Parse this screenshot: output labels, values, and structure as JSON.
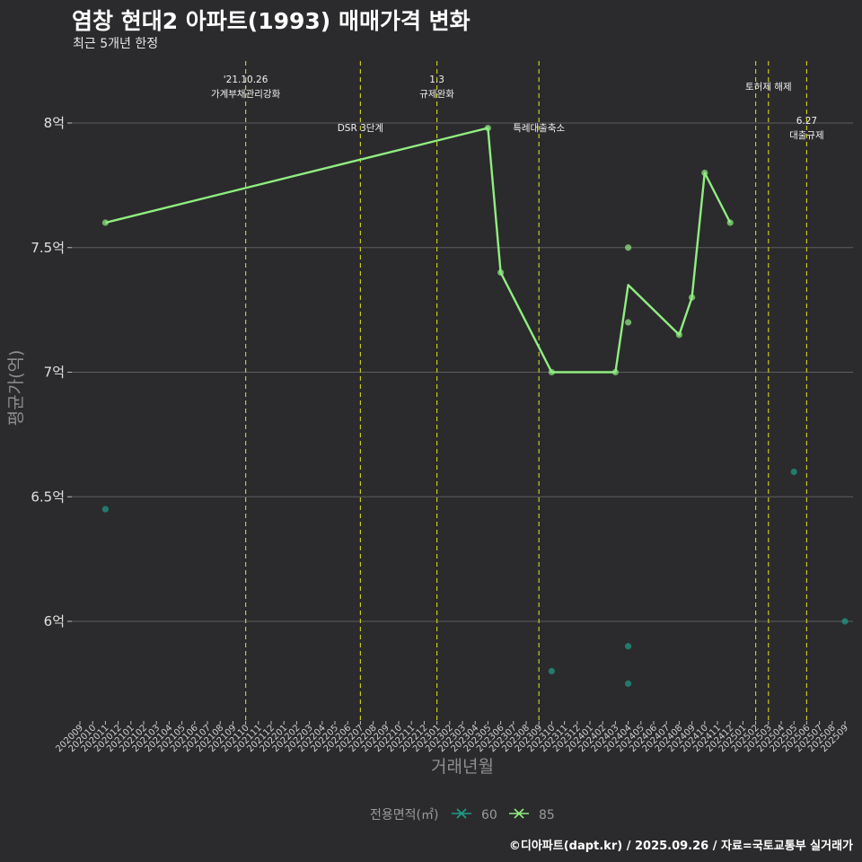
{
  "title": "염창 현대2 아파트(1993) 매매가격 변화",
  "subtitle": "최근 5개년 한정",
  "footer": "©디아파트(dapt.kr) / 2025.09.26 / 자료=국토교통부 실거래가",
  "chart_data": {
    "type": "line",
    "xlabel": "거래년월",
    "ylabel": "평균가(억)",
    "x_categories": [
      "202009",
      "202010",
      "202011",
      "202012",
      "202101",
      "202102",
      "202103",
      "202104",
      "202105",
      "202106",
      "202107",
      "202108",
      "202109",
      "202110",
      "202111",
      "202112",
      "202201",
      "202202",
      "202203",
      "202204",
      "202205",
      "202206",
      "202207",
      "202208",
      "202209",
      "202210",
      "202211",
      "202212",
      "202301",
      "202302",
      "202303",
      "202304",
      "202305",
      "202306",
      "202307",
      "202308",
      "202309",
      "202310",
      "202311",
      "202312",
      "202401",
      "202402",
      "202403",
      "202404",
      "202405",
      "202406",
      "202407",
      "202408",
      "202409",
      "202410",
      "202411",
      "202412",
      "202501",
      "202502",
      "202503",
      "202504",
      "202505",
      "202506",
      "202507",
      "202508",
      "202509"
    ],
    "y_ticks": [
      {
        "value": 6,
        "label": "6억"
      },
      {
        "value": 6.5,
        "label": "6.5억"
      },
      {
        "value": 7,
        "label": "7억"
      },
      {
        "value": 7.5,
        "label": "7.5억"
      },
      {
        "value": 8,
        "label": "8억"
      }
    ],
    "ylim": [
      5.63,
      8.2
    ],
    "grid": true,
    "legend": {
      "title": "전용면적(㎡)",
      "position": "bottom",
      "entries": [
        {
          "name": "60",
          "color": "#1f9e89"
        },
        {
          "name": "85",
          "color": "#90ee80"
        }
      ]
    },
    "series": [
      {
        "name": "60",
        "color": "#1f9e89",
        "line": [],
        "points": [
          {
            "x": "202011",
            "y": 6.45
          },
          {
            "x": "202310",
            "y": 5.8
          },
          {
            "x": "202404",
            "y": 5.9
          },
          {
            "x": "202404",
            "y": 5.75
          },
          {
            "x": "202505",
            "y": 6.6
          },
          {
            "x": "202509",
            "y": 6.0
          }
        ]
      },
      {
        "name": "85",
        "color": "#90ee80",
        "line": [
          {
            "x": "202011",
            "y": 7.6
          },
          {
            "x": "202305",
            "y": 7.98
          },
          {
            "x": "202306",
            "y": 7.4
          },
          {
            "x": "202310",
            "y": 7.0
          },
          {
            "x": "202403",
            "y": 7.0
          },
          {
            "x": "202404",
            "y": 7.35
          },
          {
            "x": "202408",
            "y": 7.15
          },
          {
            "x": "202409",
            "y": 7.3
          },
          {
            "x": "202410",
            "y": 7.8
          },
          {
            "x": "202412",
            "y": 7.6
          }
        ],
        "points": [
          {
            "x": "202011",
            "y": 7.6
          },
          {
            "x": "202305",
            "y": 7.98
          },
          {
            "x": "202306",
            "y": 7.4
          },
          {
            "x": "202310",
            "y": 7.0
          },
          {
            "x": "202403",
            "y": 7.0
          },
          {
            "x": "202404",
            "y": 7.5
          },
          {
            "x": "202404",
            "y": 7.2
          },
          {
            "x": "202408",
            "y": 7.15
          },
          {
            "x": "202409",
            "y": 7.3
          },
          {
            "x": "202410",
            "y": 7.8
          },
          {
            "x": "202412",
            "y": 7.6
          }
        ]
      }
    ],
    "events": [
      {
        "x": "202110",
        "lines": [
          "'21.10.26",
          "가계부채관리강화"
        ],
        "level": 0
      },
      {
        "x": "202207",
        "lines": [
          "DSR 3단계"
        ],
        "level": 2
      },
      {
        "x": "202301",
        "lines": [
          "1.3",
          "규제완화"
        ],
        "level": 0
      },
      {
        "x": "202309",
        "lines": [
          "특례대출축소"
        ],
        "level": 2
      },
      {
        "x": "202502",
        "lines": [],
        "level": 0
      },
      {
        "x": "202503",
        "lines": [
          "토허제 해제"
        ],
        "level": 1
      },
      {
        "x": "202506",
        "lines": [
          "6.27",
          "대출규제"
        ],
        "level": 3
      }
    ],
    "event_line_color": "#c8c81e"
  }
}
